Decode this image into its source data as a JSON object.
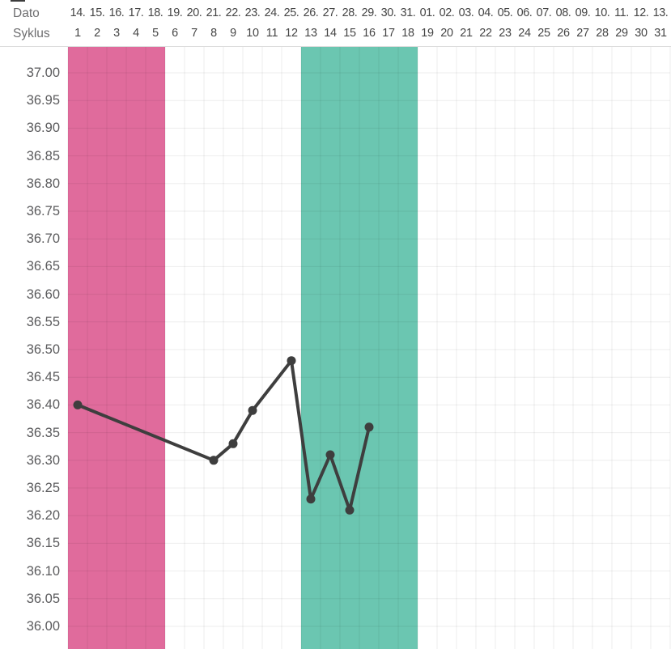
{
  "header": {
    "date_row_label": "Dato",
    "cycle_row_label": "Syklus",
    "dates": [
      "14.",
      "15.",
      "16.",
      "17.",
      "18.",
      "19.",
      "20.",
      "21.",
      "22.",
      "23.",
      "24.",
      "25.",
      "26.",
      "27.",
      "28.",
      "29.",
      "30.",
      "31.",
      "01.",
      "02.",
      "03.",
      "04.",
      "05.",
      "06.",
      "07.",
      "08.",
      "09.",
      "10.",
      "11.",
      "12.",
      "13."
    ],
    "cycle_days": [
      "1",
      "2",
      "3",
      "4",
      "5",
      "6",
      "7",
      "8",
      "9",
      "10",
      "11",
      "12",
      "13",
      "14",
      "15",
      "16",
      "17",
      "18",
      "19",
      "20",
      "21",
      "22",
      "23",
      "24",
      "25",
      "26",
      "27",
      "28",
      "29",
      "30",
      "31"
    ]
  },
  "y_axis": {
    "labels": [
      "37.00",
      "36.95",
      "36.90",
      "36.85",
      "36.80",
      "36.75",
      "36.70",
      "36.65",
      "36.60",
      "36.55",
      "36.50",
      "36.45",
      "36.40",
      "36.35",
      "36.30",
      "36.25",
      "36.20",
      "36.15",
      "36.10",
      "36.05",
      "36.00"
    ]
  },
  "chart_data": {
    "type": "line",
    "series_name": "basal-temperature",
    "x_axis_label": "Syklus",
    "x_full_range": [
      1,
      31
    ],
    "x": [
      1,
      8,
      9,
      10,
      12,
      13,
      14,
      15,
      16
    ],
    "values": [
      36.4,
      36.3,
      36.33,
      36.39,
      36.48,
      36.23,
      36.31,
      36.21,
      36.36
    ],
    "ylim": [
      36.0,
      37.0
    ],
    "ytick_step": 0.05,
    "grid": true,
    "legend": "none",
    "bands": [
      {
        "name": "menstruation-band",
        "start_day": 1,
        "end_day": 5,
        "color": "#e06b9c"
      },
      {
        "name": "fertile-window-band",
        "start_day": 13,
        "end_day": 18,
        "color": "#6bc6b1"
      }
    ],
    "line_color": "#3e3e3e"
  },
  "colors": {
    "background": "#ffffff",
    "gridline": "rgba(0,0,0,0.07)",
    "header_divider": "#dcdcdc",
    "row_label_text": "#6d6d6f",
    "tick_text": "#454545",
    "y_tick_text": "#5b5b5d"
  }
}
